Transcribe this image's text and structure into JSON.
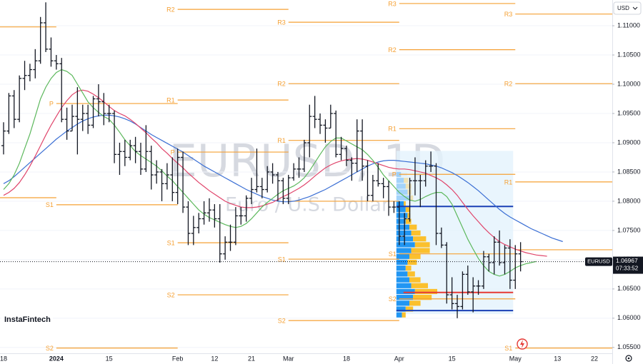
{
  "chart_data": {
    "type": "ohlc",
    "title": "EURUSD, 1D",
    "subtitle": "Euro / U.S. Dollar",
    "symbol": "EURUSD",
    "currency": "USD",
    "countdown": "07:33:52",
    "brand": "InstaFintech",
    "bar_color": "#131722",
    "grid": true,
    "ylim": [
      1.054,
      1.1144
    ],
    "yticks": [
      {
        "value": 1.055,
        "label": "1.05500"
      },
      {
        "value": 1.06,
        "label": "1.06000"
      },
      {
        "value": 1.065,
        "label": "1.06500"
      },
      {
        "value": 1.07,
        "label": "1.07000"
      },
      {
        "value": 1.075,
        "label": "1.07500"
      },
      {
        "value": 1.08,
        "label": "1.08000"
      },
      {
        "value": 1.085,
        "label": "1.08500"
      },
      {
        "value": 1.09,
        "label": "1.09000"
      },
      {
        "value": 1.095,
        "label": "1.09500"
      },
      {
        "value": 1.1,
        "label": "1.10000"
      },
      {
        "value": 1.105,
        "label": "1.10500"
      },
      {
        "value": 1.11,
        "label": "1.11000"
      }
    ],
    "categories": [
      "18",
      null,
      null,
      null,
      null,
      null,
      null,
      null,
      null,
      null,
      "2024",
      null,
      null,
      null,
      null,
      null,
      null,
      null,
      null,
      null,
      "15",
      null,
      null,
      null,
      null,
      null,
      null,
      null,
      null,
      null,
      null,
      null,
      null,
      "Feb",
      null,
      null,
      null,
      null,
      null,
      null,
      "12",
      null,
      null,
      null,
      null,
      null,
      null,
      "21",
      null,
      null,
      null,
      null,
      null,
      null,
      "Mar",
      null,
      null,
      null,
      null,
      null,
      null,
      null,
      null,
      null,
      null,
      "18",
      null,
      null,
      null,
      null,
      null,
      null,
      null,
      null,
      null,
      "Apr",
      null,
      null,
      null,
      null,
      null,
      null,
      null,
      null,
      null,
      "15",
      null,
      null,
      null,
      null,
      null,
      null,
      null,
      null,
      null,
      null,
      null,
      "May",
      null,
      null,
      null,
      null,
      null,
      null,
      null,
      "13",
      null,
      null,
      null,
      null,
      null,
      null,
      "22"
    ],
    "open": [
      1.0895,
      1.092,
      1.098,
      1.094,
      1.101,
      1.1015,
      1.1025,
      1.104,
      1.1105,
      1.106,
      1.104,
      1.1035,
      1.094,
      1.092,
      1.0945,
      1.094,
      1.095,
      1.093,
      1.0975,
      1.097,
      1.095,
      1.095,
      1.088,
      1.0885,
      1.0875,
      1.0895,
      1.0885,
      1.0855,
      1.0885,
      1.0845,
      1.085,
      1.083,
      1.0845,
      1.0815,
      1.0875,
      1.079,
      1.0745,
      1.0755,
      1.077,
      1.078,
      1.0785,
      1.077,
      1.071,
      1.073,
      1.073,
      1.0775,
      1.0775,
      1.0805,
      1.082,
      1.0825,
      1.082,
      1.085,
      1.0845,
      1.0835,
      1.0805,
      1.084,
      1.0855,
      1.0855,
      1.09,
      1.0945,
      1.094,
      1.093,
      1.0925,
      1.095,
      1.088,
      1.089,
      1.087,
      1.0865,
      1.092,
      1.086,
      1.081,
      1.0835,
      1.083,
      1.0825,
      1.079,
      1.079,
      1.074,
      1.077,
      1.0835,
      1.0835,
      1.0835,
      1.086,
      1.086,
      1.0745,
      1.0725,
      1.064,
      1.0625,
      1.062,
      1.0675,
      1.0645,
      1.0655,
      1.0655,
      1.0705,
      1.0695,
      1.073,
      1.0695,
      1.072,
      1.0665,
      1.071,
      null,
      null,
      null,
      null,
      null,
      null,
      null,
      null,
      null,
      null,
      null,
      null,
      null,
      null
    ],
    "high": [
      1.0935,
      1.0985,
      1.099,
      1.1015,
      1.104,
      1.1035,
      1.106,
      1.1115,
      1.114,
      1.108,
      1.105,
      1.1045,
      1.096,
      1.0965,
      1.0995,
      1.0965,
      1.0965,
      1.098,
      1.1,
      1.0985,
      1.0965,
      1.0955,
      1.09,
      1.0905,
      1.0905,
      1.091,
      1.09,
      1.093,
      1.0895,
      1.087,
      1.0855,
      1.0865,
      1.0875,
      1.089,
      1.0885,
      1.08,
      1.0775,
      1.078,
      1.08,
      1.0805,
      1.0795,
      1.0795,
      1.074,
      1.076,
      1.079,
      1.079,
      1.081,
      1.084,
      1.089,
      1.084,
      1.086,
      1.0865,
      1.085,
      1.084,
      1.0845,
      1.0865,
      1.0875,
      1.0905,
      1.0965,
      1.098,
      1.095,
      1.094,
      1.0965,
      1.0955,
      1.091,
      1.0895,
      1.0875,
      1.094,
      1.094,
      1.087,
      1.0845,
      1.0865,
      1.084,
      1.0835,
      1.08,
      1.08,
      1.078,
      1.084,
      1.0875,
      1.0845,
      1.087,
      1.0885,
      1.0865,
      1.0755,
      1.073,
      1.067,
      1.064,
      1.068,
      1.069,
      1.067,
      1.0665,
      1.0715,
      1.071,
      1.074,
      1.075,
      1.0725,
      1.0735,
      1.0725,
      1.073,
      null,
      null,
      null,
      null,
      null,
      null,
      null,
      null,
      null,
      null,
      null,
      null,
      null,
      null
    ],
    "low": [
      1.088,
      1.0915,
      1.0925,
      1.0935,
      1.099,
      1.1005,
      1.101,
      1.1035,
      1.1055,
      1.103,
      1.1025,
      1.0935,
      1.0905,
      1.092,
      1.088,
      1.092,
      1.0915,
      1.0925,
      1.0945,
      1.093,
      1.0935,
      1.0865,
      1.0845,
      1.086,
      1.087,
      1.0865,
      1.0845,
      1.085,
      1.082,
      1.083,
      1.08,
      1.082,
      1.08,
      1.0795,
      1.078,
      1.0725,
      1.0725,
      1.0745,
      1.076,
      1.0765,
      1.0755,
      1.0695,
      1.07,
      1.0715,
      1.0725,
      1.076,
      1.0765,
      1.0795,
      1.0815,
      1.0805,
      1.0815,
      1.083,
      1.08,
      1.0795,
      1.0795,
      1.0835,
      1.084,
      1.085,
      1.0875,
      1.0925,
      1.0915,
      1.09,
      1.0925,
      1.0875,
      1.087,
      1.086,
      1.0835,
      1.085,
      1.0835,
      1.08,
      1.08,
      1.0825,
      1.0805,
      1.0775,
      1.078,
      1.0725,
      1.0725,
      1.0765,
      1.081,
      1.079,
      1.0825,
      1.085,
      1.0725,
      1.072,
      1.0625,
      1.0615,
      1.06,
      1.0615,
      1.064,
      1.061,
      1.064,
      1.065,
      1.068,
      1.0675,
      1.069,
      1.0675,
      1.065,
      1.065,
      1.068,
      null,
      null,
      null,
      null,
      null,
      null,
      null,
      null,
      null,
      null,
      null,
      null,
      null,
      null
    ],
    "close": [
      1.092,
      1.098,
      1.094,
      1.101,
      1.1015,
      1.1025,
      1.104,
      1.1105,
      1.106,
      1.104,
      1.1035,
      1.094,
      1.092,
      1.0945,
      1.094,
      1.095,
      1.093,
      1.0975,
      1.097,
      1.095,
      1.095,
      1.088,
      1.0885,
      1.0875,
      1.0895,
      1.0885,
      1.0855,
      1.0885,
      1.0845,
      1.085,
      1.083,
      1.0845,
      1.0815,
      1.0875,
      1.079,
      1.0745,
      1.0755,
      1.077,
      1.078,
      1.0785,
      1.077,
      1.071,
      1.073,
      1.073,
      1.0775,
      1.0775,
      1.0805,
      1.082,
      1.0825,
      1.082,
      1.085,
      1.0845,
      1.0835,
      1.0805,
      1.084,
      1.0855,
      1.0855,
      1.09,
      1.0945,
      1.094,
      1.093,
      1.0925,
      1.095,
      1.088,
      1.089,
      1.087,
      1.0865,
      1.092,
      1.086,
      1.081,
      1.0835,
      1.083,
      1.0825,
      1.079,
      1.079,
      1.074,
      1.077,
      1.0835,
      1.0835,
      1.0835,
      1.086,
      1.086,
      1.0745,
      1.0725,
      1.064,
      1.0625,
      1.062,
      1.0675,
      1.0645,
      1.0655,
      1.0655,
      1.0705,
      1.0695,
      1.073,
      1.0695,
      1.072,
      1.0665,
      1.071,
      1.06967,
      null,
      null,
      null,
      null,
      null,
      null,
      null,
      null,
      null,
      null,
      null,
      null,
      null,
      null
    ],
    "series": [
      {
        "color": "#3b6fd4",
        "values": [
          1.083,
          1.0835,
          1.0842,
          1.085,
          1.0858,
          1.0866,
          1.0874,
          1.0882,
          1.089,
          1.0898,
          1.0906,
          1.0913,
          1.092,
          1.0926,
          1.0932,
          1.0937,
          1.0941,
          1.0944,
          1.0946,
          1.0947,
          1.0947,
          1.0946,
          1.0944,
          1.0941,
          1.0937,
          1.0932,
          1.0926,
          1.092,
          1.0914,
          1.0909,
          1.0904,
          1.0899,
          1.0894,
          1.0889,
          1.0884,
          1.0878,
          1.0872,
          1.0866,
          1.086,
          1.0855,
          1.085,
          1.0845,
          1.084,
          1.0835,
          1.083,
          1.0825,
          1.082,
          1.0816,
          1.0812,
          1.0808,
          1.0805,
          1.0802,
          1.08,
          1.0799,
          1.0799,
          1.08,
          1.0802,
          1.0805,
          1.0808,
          1.0812,
          1.0816,
          1.082,
          1.0825,
          1.083,
          1.0835,
          1.084,
          1.0845,
          1.085,
          1.0855,
          1.086,
          1.0864,
          1.0867,
          1.0869,
          1.087,
          1.087,
          1.0869,
          1.0868,
          1.0867,
          1.0866,
          1.0865,
          1.0864,
          1.0862,
          1.086,
          1.0857,
          1.0853,
          1.0849,
          1.0844,
          1.0838,
          1.0832,
          1.0825,
          1.0818,
          1.081,
          1.0802,
          1.0794,
          1.0786,
          1.0779,
          1.0773,
          1.0768,
          1.0763,
          1.0758,
          1.0753,
          1.0749,
          1.0745,
          1.0741,
          1.0737,
          1.0734,
          1.0731,
          null,
          null,
          null,
          null,
          null,
          null
        ]
      },
      {
        "color": "#e0456b",
        "values": [
          1.081,
          1.0815,
          1.0822,
          1.0832,
          1.0845,
          1.086,
          1.0877,
          1.0895,
          1.0913,
          1.093,
          1.0945,
          1.096,
          1.0972,
          1.0982,
          1.0988,
          1.099,
          1.0988,
          1.0983,
          1.0977,
          1.097,
          1.0962,
          1.0955,
          1.095,
          1.0946,
          1.094,
          1.0933,
          1.0925,
          1.0917,
          1.0908,
          1.09,
          1.089,
          1.0882,
          1.0873,
          1.0865,
          1.0857,
          1.0848,
          1.084,
          1.0832,
          1.0825,
          1.0818,
          1.0812,
          1.0806,
          1.08,
          1.0796,
          1.0793,
          1.079,
          1.0789,
          1.0789,
          1.079,
          1.0792,
          1.0795,
          1.0798,
          1.0803,
          1.0808,
          1.0812,
          1.0817,
          1.0822,
          1.0828,
          1.0835,
          1.0843,
          1.085,
          1.0857,
          1.0862,
          1.0866,
          1.0869,
          1.0871,
          1.0872,
          1.0873,
          1.0872,
          1.087,
          1.0867,
          1.0864,
          1.0861,
          1.0858,
          1.0856,
          1.0855,
          1.0855,
          1.0854,
          1.0852,
          1.085,
          1.0848,
          1.0844,
          1.084,
          1.0835,
          1.0828,
          1.082,
          1.081,
          1.0798,
          1.0786,
          1.0775,
          1.0765,
          1.0755,
          1.0746,
          1.0738,
          1.0731,
          1.0726,
          1.0722,
          1.0718,
          1.0715,
          1.0712,
          1.071,
          1.0708,
          1.0707,
          1.0706,
          null,
          null,
          null,
          null,
          null,
          null,
          null,
          null,
          null
        ]
      },
      {
        "color": "#5cb85c",
        "values": [
          1.082,
          1.083,
          1.0845,
          1.0865,
          1.089,
          1.0915,
          1.0945,
          1.0975,
          1.0995,
          1.101,
          1.102,
          1.1025,
          1.1022,
          1.1015,
          1.1,
          1.0985,
          1.097,
          1.096,
          1.0952,
          1.0945,
          1.094,
          1.093,
          1.0918,
          1.0905,
          1.0895,
          1.0885,
          1.0878,
          1.0872,
          1.0866,
          1.086,
          1.0852,
          1.0843,
          1.0835,
          1.0825,
          1.0815,
          1.0805,
          1.0795,
          1.0785,
          1.0778,
          1.0772,
          1.0768,
          1.0764,
          1.076,
          1.0757,
          1.0755,
          1.0757,
          1.0762,
          1.077,
          1.078,
          1.079,
          1.0798,
          1.0805,
          1.0812,
          1.0818,
          1.0822,
          1.0826,
          1.0832,
          1.084,
          1.0852,
          1.0866,
          1.088,
          1.0893,
          1.0902,
          1.0908,
          1.0908,
          1.0903,
          1.0898,
          1.0893,
          1.0888,
          1.088,
          1.087,
          1.0858,
          1.0845,
          1.0835,
          1.0825,
          1.0815,
          1.0808,
          1.0802,
          1.08,
          1.0803,
          1.0808,
          1.0812,
          1.0815,
          1.0815,
          1.0808,
          1.0795,
          1.0775,
          1.0755,
          1.0735,
          1.0718,
          1.0702,
          1.069,
          1.068,
          1.0675,
          1.0672,
          1.0675,
          1.068,
          1.0686,
          1.069,
          1.0693,
          1.0695,
          1.0697,
          null,
          null,
          null,
          null,
          null,
          null,
          null,
          null,
          null,
          null,
          null
        ]
      }
    ],
    "pivots": {
      "color": "#f5a033",
      "periods": [
        {
          "levels": [
            {
              "value": 1.1098
            },
            {
              "value": 1.0806
            }
          ]
        },
        {
          "levels": [
            {
              "label": "P",
              "value": 1.0967
            },
            {
              "label": "S1",
              "value": 1.0794
            },
            {
              "label": "S2",
              "value": 1.0549
            }
          ]
        },
        {
          "levels": [
            {
              "label": "R2",
              "value": 1.1128
            },
            {
              "label": "R1",
              "value": 1.0973
            },
            {
              "label": "P",
              "value": 1.0884
            },
            {
              "label": "S1",
              "value": 1.0729
            },
            {
              "label": "S2",
              "value": 1.064
            }
          ]
        },
        {
          "levels": [
            {
              "label": "R3",
              "value": 1.1106
            },
            {
              "label": "R2",
              "value": 1.1001
            },
            {
              "label": "R1",
              "value": 1.0904
            },
            {
              "value": 1.08
            },
            {
              "label": "S1",
              "value": 1.0701
            },
            {
              "label": "S2",
              "value": 1.0596
            }
          ]
        },
        {
          "levels": [
            {
              "label": "R3",
              "value": 1.1138
            },
            {
              "label": "R2",
              "value": 1.1059
            },
            {
              "label": "R1",
              "value": 1.0924
            },
            {
              "label": "P",
              "value": 1.0846
            },
            {
              "label": "S1",
              "value": 1.071
            },
            {
              "label": "S2",
              "value": 1.0633
            }
          ]
        },
        {
          "levels": [
            {
              "label": "R3",
              "value": 1.112
            },
            {
              "label": "R2",
              "value": 1.1001
            },
            {
              "label": "R1",
              "value": 1.0833
            },
            {
              "value": 1.0717
            },
            {
              "label": "S1",
              "value": 1.0549
            }
          ]
        }
      ]
    },
    "volume_profile": {
      "bins": [
        1.06,
        1.061,
        1.062,
        1.063,
        1.064,
        1.065,
        1.066,
        1.067,
        1.068,
        1.069,
        1.07,
        1.071,
        1.072,
        1.073,
        1.074,
        1.075,
        1.076,
        1.077,
        1.078,
        1.079,
        1.08,
        1.081,
        1.082,
        1.083,
        1.084,
        1.085
      ],
      "up": [
        6,
        10,
        14,
        18,
        20,
        16,
        14,
        12,
        10,
        12,
        14,
        16,
        20,
        18,
        16,
        14,
        10,
        12,
        10,
        8,
        15,
        12,
        10,
        8,
        5
      ],
      "down": [
        4,
        8,
        12,
        20,
        24,
        18,
        12,
        8,
        6,
        10,
        12,
        20,
        16,
        14,
        10,
        8,
        6,
        3,
        5,
        2,
        3,
        4,
        6,
        5,
        0
      ],
      "up_color": "#2196f3",
      "down_color": "#fbc02d",
      "range": [
        1.0607,
        1.0886
      ],
      "range_color": "#e3f2fd",
      "poc": 1.0644,
      "poc_color": "#e53935",
      "vah": 1.0791,
      "val": 1.0613,
      "va_color": "#1a3fb5"
    }
  }
}
